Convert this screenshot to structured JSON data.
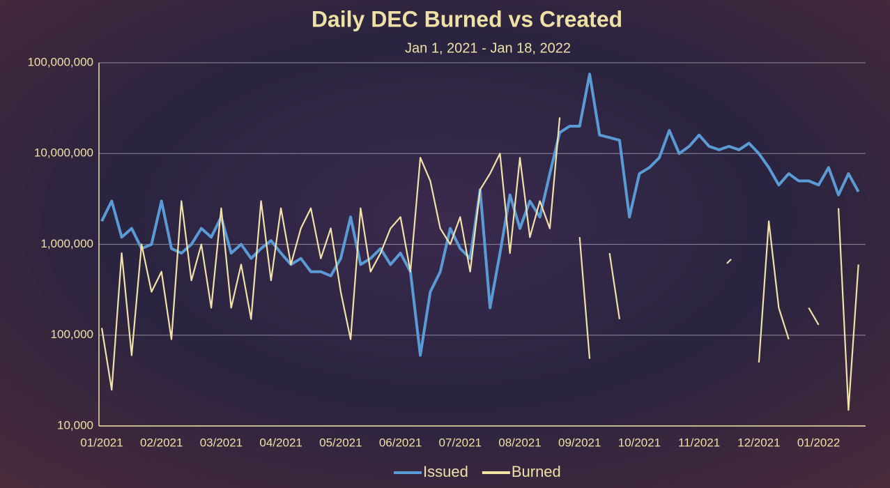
{
  "chart_data": {
    "type": "line",
    "title": "Daily DEC Burned vs Created",
    "subtitle": "Jan 1, 2021  - Jan 18, 2022",
    "categories": [
      "01/2021",
      null,
      null,
      null,
      null,
      null,
      "02/2021",
      null,
      null,
      null,
      null,
      null,
      "03/2021",
      null,
      null,
      null,
      null,
      null,
      "04/2021",
      null,
      null,
      null,
      null,
      null,
      "05/2021",
      null,
      null,
      null,
      null,
      null,
      "06/2021",
      null,
      null,
      null,
      null,
      null,
      "07/2021",
      null,
      null,
      null,
      null,
      null,
      "08/2021",
      null,
      null,
      null,
      null,
      null,
      "09/2021",
      null,
      null,
      null,
      null,
      null,
      "10/2021",
      null,
      null,
      null,
      null,
      null,
      "11/2021",
      null,
      null,
      null,
      null,
      null,
      "12/2021",
      null,
      null,
      null,
      null,
      null,
      "01/2022",
      null,
      null,
      null,
      null
    ],
    "series": [
      {
        "name": "Issued",
        "color": "#5b9bd5",
        "values": [
          1800000,
          3000000,
          1200000,
          1500000,
          900000,
          1000000,
          3000000,
          900000,
          800000,
          1000000,
          1500000,
          1200000,
          2000000,
          800000,
          1000000,
          700000,
          900000,
          1100000,
          800000,
          600000,
          700000,
          500000,
          500000,
          450000,
          700000,
          2000000,
          600000,
          700000,
          900000,
          600000,
          800000,
          500000,
          60000,
          300000,
          500000,
          1500000,
          900000,
          700000,
          4000000,
          200000,
          800000,
          3500000,
          1500000,
          3000000,
          2000000,
          6000000,
          17000000,
          20000000,
          20000000,
          75000000,
          16000000,
          15000000,
          14000000,
          2000000,
          6000000,
          7000000,
          9000000,
          18000000,
          10000000,
          12000000,
          16000000,
          12000000,
          11000000,
          12000000,
          11000000,
          13000000,
          10000000,
          7000000,
          4500000,
          6000000,
          5000000,
          5000000,
          4500000,
          7000000,
          3500000,
          6000000,
          3800000
        ]
      },
      {
        "name": "Burned",
        "color": "#f2e2a8",
        "values": [
          120000,
          25000,
          800000,
          60000,
          1000000,
          300000,
          500000,
          90000,
          3000000,
          400000,
          1000000,
          200000,
          2500000,
          200000,
          600000,
          150000,
          3000000,
          400000,
          2500000,
          600000,
          1500000,
          2500000,
          700000,
          1500000,
          300000,
          90000,
          2500000,
          500000,
          800000,
          1500000,
          2000000,
          500000,
          9000000,
          5000000,
          1500000,
          1000000,
          2000000,
          500000,
          4000000,
          6000000,
          10000000,
          800000,
          9000000,
          1200000,
          3000000,
          1500000,
          25000000,
          null,
          1200000,
          55000,
          null,
          800000,
          150000,
          null,
          null,
          null,
          null,
          null,
          null,
          null,
          null,
          null,
          null,
          650000,
          null,
          null,
          50000,
          1800000,
          200000,
          90000,
          null,
          200000,
          130000,
          null,
          2500000,
          15000,
          600000
        ]
      }
    ],
    "ylim": [
      10000,
      100000000
    ],
    "log_scale": true,
    "grid": true,
    "legend": "bottom",
    "yticks": [
      {
        "value": 10000,
        "label": "10,000"
      },
      {
        "value": 100000,
        "label": "100,000"
      },
      {
        "value": 1000000,
        "label": "1,000,000"
      },
      {
        "value": 10000000,
        "label": "10,000,000"
      },
      {
        "value": 100000000,
        "label": "100,000,000"
      }
    ]
  }
}
